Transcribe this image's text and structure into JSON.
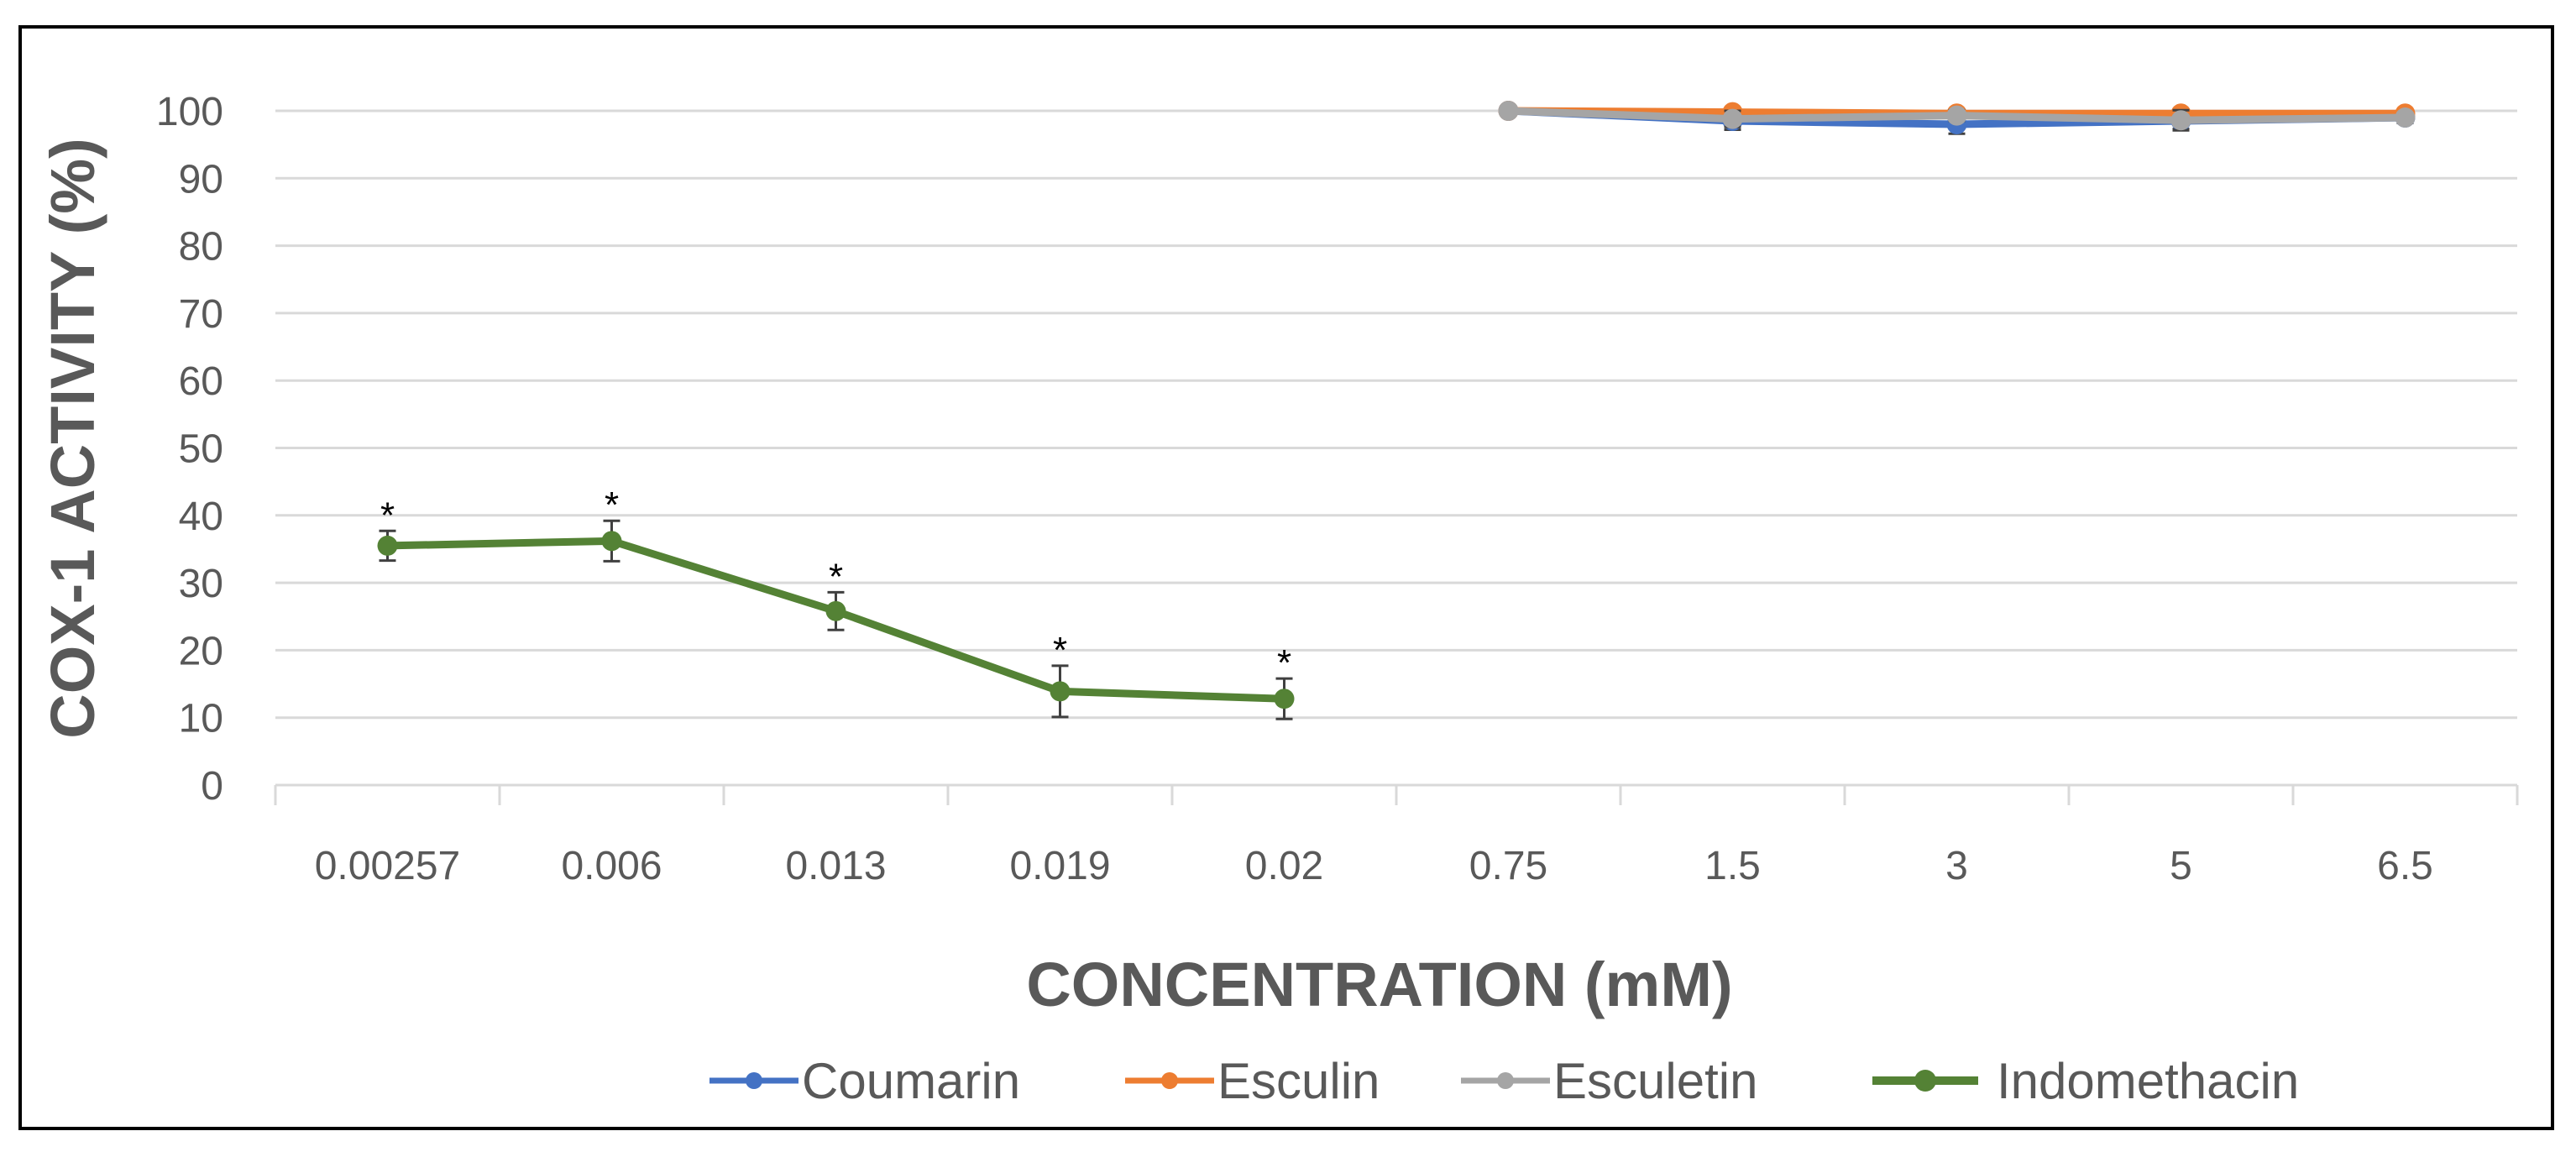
{
  "chart_data": {
    "type": "line",
    "categories": [
      "0.00257",
      "0.006",
      "0.013",
      "0.019",
      "0.02",
      "0.75",
      "1.5",
      "3",
      "5",
      "6.5"
    ],
    "ylabel": "COX-1 ACTIVITY (%)",
    "xlabel": "CONCENTRATION (mM)",
    "ylim": [
      0,
      100
    ],
    "yticks": [
      "0",
      "10",
      "20",
      "30",
      "40",
      "50",
      "60",
      "70",
      "80",
      "90",
      "100"
    ],
    "grid": "horizontal",
    "legend_position": "bottom",
    "series": [
      {
        "name": "Coumarin",
        "color": "#4472C4",
        "values": [
          null,
          null,
          null,
          null,
          null,
          100,
          98.5,
          98,
          98.5,
          99
        ],
        "errors": [
          null,
          null,
          null,
          null,
          null,
          0,
          1.3,
          1.4,
          1.2,
          0.8
        ],
        "annotations": [
          null,
          null,
          null,
          null,
          null,
          null,
          null,
          null,
          null,
          null
        ]
      },
      {
        "name": "Esculin",
        "color": "#ED7D31",
        "values": [
          null,
          null,
          null,
          null,
          null,
          100,
          99.8,
          99.6,
          99.6,
          99.6
        ],
        "errors": [
          null,
          null,
          null,
          null,
          null,
          0,
          0.3,
          0.3,
          0.3,
          0.3
        ],
        "annotations": [
          null,
          null,
          null,
          null,
          null,
          null,
          null,
          null,
          null,
          null
        ]
      },
      {
        "name": "Esculetin",
        "color": "#A5A5A5",
        "values": [
          null,
          null,
          null,
          null,
          null,
          100,
          98.8,
          99.3,
          98.6,
          99
        ],
        "errors": [
          null,
          null,
          null,
          null,
          null,
          0,
          1.2,
          0.8,
          1.5,
          0.6
        ],
        "annotations": [
          null,
          null,
          null,
          null,
          null,
          null,
          null,
          null,
          null,
          null
        ]
      },
      {
        "name": "Indomethacin",
        "color": "#548235",
        "values": [
          35.5,
          36.2,
          25.8,
          13.9,
          12.8,
          null,
          null,
          null,
          null,
          null
        ],
        "errors": [
          2.2,
          3.0,
          2.8,
          3.8,
          3.0,
          null,
          null,
          null,
          null,
          null
        ],
        "annotations": [
          "*",
          "*",
          "*",
          "*",
          "*",
          null,
          null,
          null,
          null,
          null
        ]
      }
    ]
  }
}
